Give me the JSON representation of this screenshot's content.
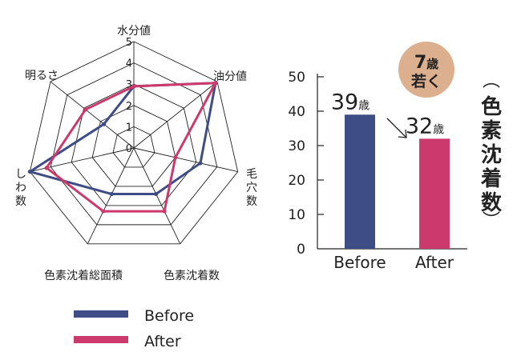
{
  "chart_data": [
    {
      "type": "radar",
      "axes": [
        "水分値",
        "油分値",
        "毛穴数",
        "色素沈着数",
        "色素沈着総面積",
        "しわ数",
        "明るさ"
      ],
      "axis_label_lines": [
        [
          "水分値"
        ],
        [
          "油分値"
        ],
        [
          "毛",
          "穴",
          "数"
        ],
        [
          "色素沈着数"
        ],
        [
          "色素沈着総面積"
        ],
        [
          "し",
          "わ",
          "数"
        ],
        [
          "明るさ"
        ]
      ],
      "scale_ticks": [
        "0",
        "1",
        "2",
        "3",
        "4",
        "5"
      ],
      "range": [
        0,
        5
      ],
      "series": [
        {
          "name": "Before",
          "color": "#3f4d86",
          "values": [
            2.9,
            4.9,
            3.2,
            2.4,
            2.4,
            5.0,
            1.8
          ]
        },
        {
          "name": "After",
          "color": "#cc3a6d",
          "values": [
            2.9,
            4.9,
            2.0,
            3.3,
            3.3,
            4.2,
            2.9
          ]
        }
      ]
    },
    {
      "type": "bar",
      "categories": [
        "Before",
        "After"
      ],
      "values": [
        39,
        32
      ],
      "value_labels": [
        {
          "number": "39",
          "unit": "歳"
        },
        {
          "number": "32",
          "unit": "歳"
        }
      ],
      "colors": [
        "#3f4d86",
        "#cc3a6d"
      ],
      "ylim": [
        0,
        50
      ],
      "yticks": [
        "0",
        "10",
        "20",
        "30",
        "40",
        "50"
      ],
      "ylabel_chars": [
        "色",
        "素",
        "沈",
        "着",
        "数"
      ],
      "ylabel_brackets": [
        "︵",
        "︶"
      ],
      "badge": {
        "line1_number": "7",
        "line1_unit": "歳",
        "line2": "若く",
        "color": "#dcb08e"
      }
    }
  ],
  "legend": [
    {
      "label": "Before",
      "color": "#3f4d86"
    },
    {
      "label": "After",
      "color": "#cc3a6d"
    }
  ]
}
